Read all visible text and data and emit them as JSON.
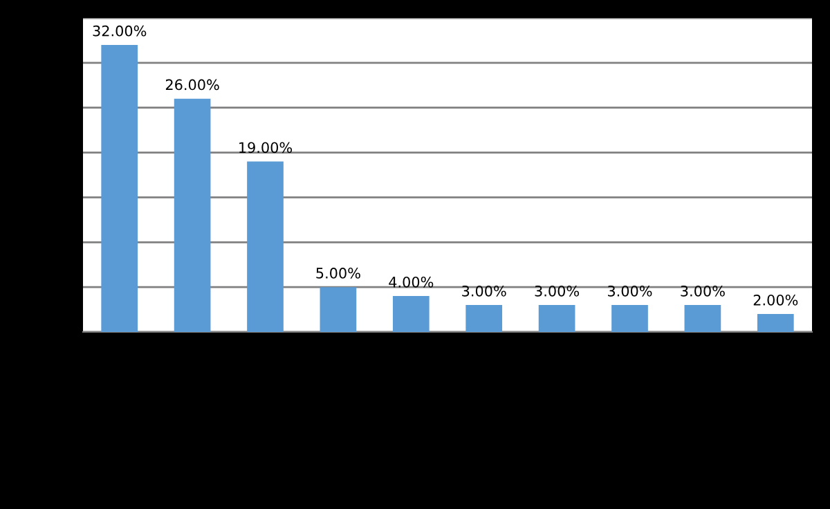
{
  "chart_data": {
    "type": "bar",
    "categories": [
      null,
      null,
      null,
      null,
      null,
      null,
      null,
      null,
      null,
      null
    ],
    "values": [
      32,
      26,
      19,
      5,
      4,
      3,
      3,
      3,
      3,
      2
    ],
    "value_labels": [
      "32.00%",
      "26.00%",
      "19.00%",
      "5.00%",
      "4.00%",
      "3.00%",
      "3.00%",
      "3.00%",
      "3.00%",
      "2.00%"
    ],
    "color": "#5b9bd5",
    "ylim": [
      0,
      35
    ],
    "yticks": [
      {
        "value": 0,
        "label": null
      },
      {
        "value": 5,
        "label": null
      },
      {
        "value": 10,
        "label": null
      },
      {
        "value": 15,
        "label": null
      },
      {
        "value": 20,
        "label": null
      },
      {
        "value": 25,
        "label": null
      },
      {
        "value": 30,
        "label": null
      },
      {
        "value": 35,
        "label": null
      }
    ],
    "grid": "y"
  }
}
